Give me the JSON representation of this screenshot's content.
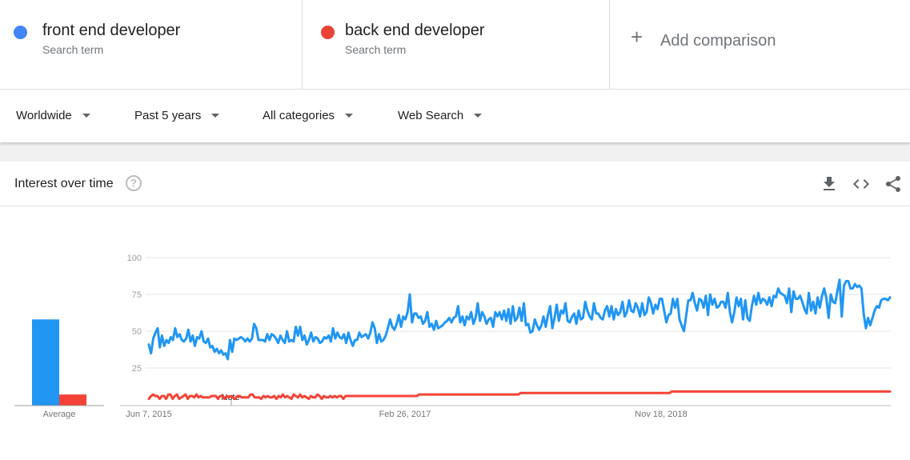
{
  "terms": [
    {
      "name": "front end developer",
      "sub": "Search term",
      "color": "#4285f4"
    },
    {
      "name": "back end developer",
      "sub": "Search term",
      "color": "#ea4335"
    }
  ],
  "add_comparison": "Add comparison",
  "filters": {
    "region": "Worldwide",
    "time": "Past 5 years",
    "category": "All categories",
    "search_type": "Web Search"
  },
  "card": {
    "title": "Interest over time",
    "help": "?"
  },
  "colors": {
    "front": "#2196f3",
    "back": "#f44336",
    "grid": "#e6e6e6"
  },
  "chart_data": {
    "type": "line",
    "ylim": [
      0,
      100
    ],
    "yticks": [
      25,
      50,
      75,
      100
    ],
    "xticks": [
      "Jun 7, 2015",
      "Feb 26, 2017",
      "Nov 18, 2018"
    ],
    "annotation": "Note",
    "average_label": "Average",
    "averages": [
      58,
      7
    ],
    "series": [
      {
        "name": "front end developer",
        "values": [
          41,
          35,
          45,
          49,
          52,
          39,
          47,
          40,
          44,
          42,
          46,
          44,
          52,
          46,
          48,
          44,
          43,
          45,
          51,
          43,
          47,
          40,
          46,
          45,
          50,
          43,
          42,
          45,
          39,
          40,
          36,
          38,
          35,
          37,
          34,
          35,
          31,
          44,
          36,
          45,
          44,
          45,
          46,
          45,
          43,
          45,
          43,
          45,
          55,
          52,
          44,
          44,
          44,
          43,
          48,
          44,
          48,
          47,
          45,
          42,
          47,
          44,
          42,
          50,
          43,
          44,
          43,
          53,
          47,
          53,
          44,
          47,
          41,
          44,
          49,
          43,
          46,
          45,
          42,
          43,
          46,
          45,
          47,
          43,
          52,
          45,
          49,
          46,
          45,
          48,
          42,
          49,
          44,
          40,
          44,
          44,
          49,
          46,
          47,
          48,
          45,
          49,
          56,
          52,
          42,
          48,
          43,
          44,
          47,
          52,
          58,
          53,
          51,
          55,
          61,
          53,
          60,
          58,
          63,
          75,
          56,
          62,
          62,
          59,
          60,
          55,
          57,
          63,
          53,
          55,
          51,
          57,
          52,
          53,
          54,
          56,
          57,
          59,
          56,
          59,
          60,
          67,
          56,
          60,
          54,
          60,
          58,
          63,
          55,
          59,
          69,
          57,
          63,
          60,
          55,
          58,
          59,
          53,
          63,
          60,
          63,
          58,
          64,
          57,
          65,
          55,
          67,
          57,
          59,
          66,
          57,
          69,
          54,
          55,
          49,
          50,
          58,
          54,
          51,
          54,
          60,
          53,
          61,
          67,
          52,
          59,
          68,
          57,
          64,
          62,
          69,
          57,
          56,
          60,
          62,
          55,
          64,
          58,
          59,
          70,
          64,
          60,
          58,
          69,
          62,
          62,
          59,
          58,
          64,
          67,
          60,
          67,
          58,
          65,
          61,
          63,
          70,
          60,
          63,
          71,
          64,
          63,
          69,
          66,
          60,
          69,
          61,
          63,
          73,
          69,
          62,
          68,
          65,
          72,
          72,
          64,
          56,
          61,
          62,
          72,
          66,
          72,
          58,
          54,
          50,
          60,
          71,
          71,
          76,
          69,
          64,
          72,
          71,
          66,
          74,
          61,
          75,
          68,
          72,
          66,
          67,
          70,
          70,
          66,
          76,
          63,
          56,
          63,
          73,
          67,
          72,
          58,
          71,
          59,
          57,
          67,
          74,
          68,
          76,
          69,
          72,
          71,
          68,
          73,
          67,
          74,
          73,
          79,
          76,
          75,
          74,
          69,
          79,
          63,
          77,
          72,
          72,
          74,
          70,
          65,
          62,
          76,
          64,
          70,
          62,
          73,
          66,
          74,
          79,
          72,
          59,
          75,
          70,
          69,
          77,
          85,
          60,
          81,
          84,
          84,
          79,
          79,
          82,
          80,
          81,
          79,
          62,
          52,
          59,
          54,
          59,
          64,
          67,
          66,
          71,
          72,
          72,
          71,
          73
        ],
        "color": "#2196f3"
      },
      {
        "name": "back end developer",
        "values": [
          4,
          6,
          7,
          6,
          6,
          4,
          6,
          6,
          4,
          7,
          7,
          4,
          6,
          7,
          4,
          5,
          6,
          7,
          4,
          6,
          6,
          5,
          7,
          5,
          6,
          5,
          5,
          5,
          5,
          6,
          6,
          6,
          4,
          6,
          6,
          4,
          6,
          5,
          6,
          5,
          4,
          6,
          6,
          5,
          5,
          5,
          5,
          7,
          7,
          5,
          5,
          5,
          4,
          6,
          5,
          6,
          5,
          5,
          6,
          4,
          6,
          5,
          7,
          5,
          6,
          5,
          4,
          7,
          6,
          5,
          7,
          5,
          6,
          5,
          4,
          6,
          5,
          5,
          7,
          6,
          4,
          6,
          5,
          5,
          6,
          5,
          6,
          5,
          6,
          6,
          4,
          6,
          6,
          6,
          6,
          6,
          6,
          6,
          6,
          6,
          6,
          6,
          6,
          6,
          6,
          6,
          6,
          6,
          6,
          6,
          6,
          6,
          6,
          6,
          6,
          6,
          6,
          6,
          6,
          6,
          6,
          6,
          6,
          6,
          6,
          7,
          7,
          7,
          7,
          7,
          7,
          7,
          7,
          7,
          7,
          7,
          7,
          7,
          7,
          7,
          7,
          7,
          7,
          7,
          7,
          7,
          7,
          7,
          7,
          7,
          7,
          7,
          7,
          7,
          7,
          7,
          7,
          7,
          7,
          7,
          7,
          7,
          7,
          7,
          7,
          7,
          7,
          7,
          7,
          7,
          7,
          7,
          8,
          8,
          8,
          8,
          8,
          8,
          8,
          8,
          8,
          8,
          8,
          8,
          8,
          8,
          8,
          8,
          8,
          8,
          8,
          8,
          8,
          8,
          8,
          8,
          8,
          8,
          8,
          8,
          8,
          8,
          8,
          8,
          8,
          8,
          8,
          8,
          8,
          8,
          8,
          8,
          8,
          8,
          8,
          8,
          8,
          8,
          8,
          8,
          8,
          8,
          8,
          8,
          8,
          8,
          8,
          8,
          8,
          8,
          8,
          8,
          8,
          8,
          8,
          8,
          8,
          8,
          8,
          8,
          8,
          8,
          9,
          9,
          9,
          9,
          9,
          9,
          9,
          9,
          9,
          9,
          9,
          9,
          9,
          9,
          9,
          9,
          9,
          9,
          9,
          9,
          9,
          9,
          9,
          9,
          9,
          9,
          9,
          9,
          9,
          9,
          9,
          9,
          9,
          9,
          9,
          9,
          9,
          9,
          9,
          9,
          9,
          9,
          9,
          9,
          9,
          9,
          9,
          9,
          9,
          9,
          9,
          9,
          9,
          9,
          9,
          9,
          9,
          9,
          9,
          9,
          9,
          9,
          9,
          9,
          9,
          9,
          9,
          9,
          9,
          9,
          9,
          9,
          9,
          9,
          9,
          9,
          9,
          9,
          9,
          9,
          9,
          9,
          9,
          9,
          9,
          9,
          9,
          9,
          9,
          9,
          9,
          9,
          9,
          9,
          9,
          9,
          9,
          9,
          9,
          9,
          9,
          9
        ],
        "color": "#f44336"
      }
    ]
  }
}
